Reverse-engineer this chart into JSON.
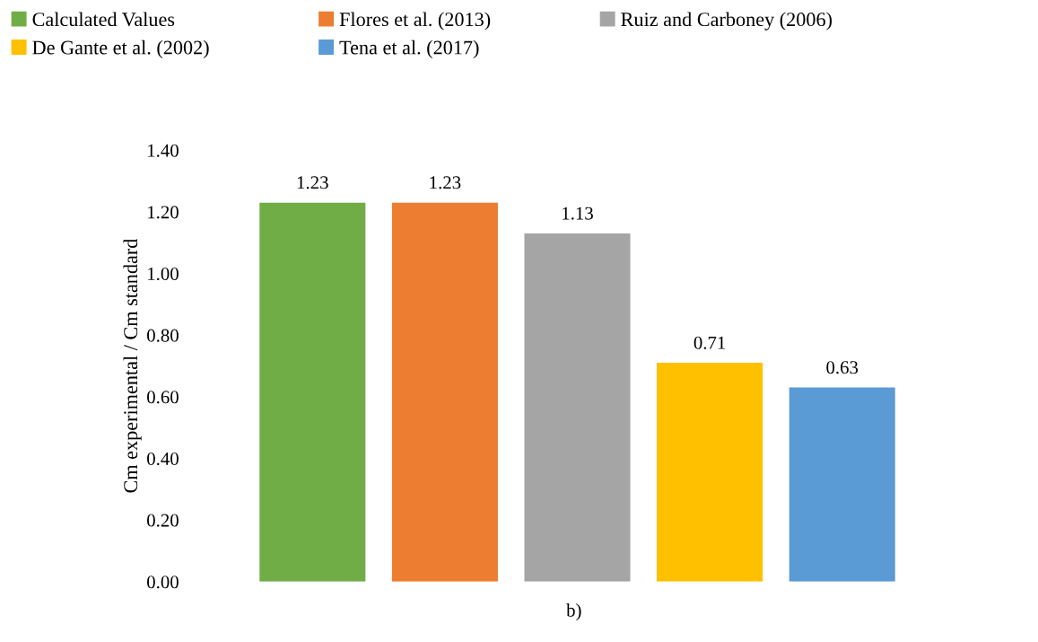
{
  "chart_data": {
    "type": "bar",
    "xlabel": "b)",
    "ylabel": "Cm experimental / Cm standard",
    "categories": [
      null
    ],
    "series": [
      {
        "name": "Calculated Values",
        "color": "#70ad47",
        "values": [
          1.23
        ]
      },
      {
        "name": "Flores et al. (2013)",
        "color": "#ed7d31",
        "values": [
          1.23
        ]
      },
      {
        "name": "Ruiz and Carboney (2006)",
        "color": "#a5a5a5",
        "values": [
          1.13
        ]
      },
      {
        "name": "De Gante et al. (2002)",
        "color": "#ffc000",
        "values": [
          0.71
        ]
      },
      {
        "name": "Tena et al. (2017)",
        "color": "#5b9bd5",
        "values": [
          0.63
        ]
      }
    ],
    "ylim": [
      0,
      1.4
    ],
    "yticks": [
      {
        "value": 0,
        "label": "0.00"
      },
      {
        "value": 0.2,
        "label": "0.20"
      },
      {
        "value": 0.4,
        "label": "0.40"
      },
      {
        "value": 0.6,
        "label": "0.60"
      },
      {
        "value": 0.8,
        "label": "0.80"
      },
      {
        "value": 1.0,
        "label": "1.00"
      },
      {
        "value": 1.2,
        "label": "1.20"
      },
      {
        "value": 1.4,
        "label": "1.40"
      }
    ],
    "data_labels": true,
    "legend": "top",
    "grid": false
  }
}
